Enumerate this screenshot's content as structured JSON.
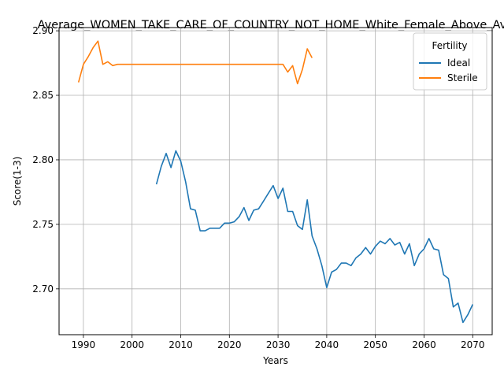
{
  "chart_data": {
    "type": "line",
    "title": "Average_WOMEN_TAKE_CARE_OF_COUNTRY_NOT_HOME_White_Female_Above_Avg",
    "xlabel": "Years",
    "ylabel": "Score(1-3)",
    "xlim": [
      1985,
      2074
    ],
    "ylim": [
      2.6645,
      2.9025
    ],
    "xticks": [
      1990,
      2000,
      2010,
      2020,
      2030,
      2040,
      2050,
      2060,
      2070
    ],
    "yticks": [
      2.7,
      2.75,
      2.8,
      2.85,
      2.9
    ],
    "ytick_labels": [
      "2.70",
      "2.75",
      "2.80",
      "2.85",
      "2.90"
    ],
    "grid": true,
    "legend": {
      "title": "Fertility",
      "placement": "top-right"
    },
    "series": [
      {
        "name": "Ideal",
        "color": "#1f77b4",
        "x": [
          2005,
          2006,
          2007,
          2008,
          2009,
          2010,
          2011,
          2012,
          2013,
          2014,
          2015,
          2016,
          2017,
          2018,
          2019,
          2020,
          2021,
          2022,
          2023,
          2024,
          2025,
          2026,
          2027,
          2028,
          2029,
          2030,
          2031,
          2032,
          2033,
          2034,
          2035,
          2036,
          2037,
          2038,
          2039,
          2040,
          2041,
          2042,
          2043,
          2044,
          2045,
          2046,
          2047,
          2048,
          2049,
          2050,
          2051,
          2052,
          2053,
          2054,
          2055,
          2056,
          2057,
          2058,
          2059,
          2060,
          2061,
          2062,
          2063,
          2064,
          2065,
          2066,
          2067,
          2068,
          2069,
          2070
        ],
        "y": [
          2.781,
          2.795,
          2.805,
          2.794,
          2.807,
          2.799,
          2.783,
          2.762,
          2.761,
          2.745,
          2.745,
          2.747,
          2.747,
          2.747,
          2.751,
          2.751,
          2.752,
          2.756,
          2.763,
          2.753,
          2.761,
          2.762,
          2.768,
          2.774,
          2.78,
          2.77,
          2.778,
          2.76,
          2.76,
          2.749,
          2.746,
          2.769,
          2.741,
          2.731,
          2.718,
          2.701,
          2.713,
          2.715,
          2.72,
          2.72,
          2.718,
          2.724,
          2.727,
          2.732,
          2.727,
          2.733,
          2.737,
          2.735,
          2.739,
          2.734,
          2.736,
          2.727,
          2.735,
          2.718,
          2.727,
          2.731,
          2.739,
          2.731,
          2.73,
          2.711,
          2.708,
          2.686,
          2.689,
          2.674,
          2.68,
          2.688
        ]
      },
      {
        "name": "Sterile",
        "color": "#ff7f0e",
        "x": [
          1989,
          1990,
          1991,
          1992,
          1993,
          1994,
          1995,
          1996,
          1997,
          1998,
          1999,
          2000,
          2005,
          2010,
          2015,
          2020,
          2025,
          2030,
          2031,
          2032,
          2033,
          2034,
          2035,
          2036,
          2037
        ],
        "y": [
          2.86,
          2.874,
          2.88,
          2.887,
          2.892,
          2.874,
          2.876,
          2.873,
          2.874,
          2.874,
          2.874,
          2.874,
          2.874,
          2.874,
          2.874,
          2.874,
          2.874,
          2.874,
          2.874,
          2.868,
          2.873,
          2.859,
          2.87,
          2.886,
          2.879
        ]
      }
    ]
  }
}
